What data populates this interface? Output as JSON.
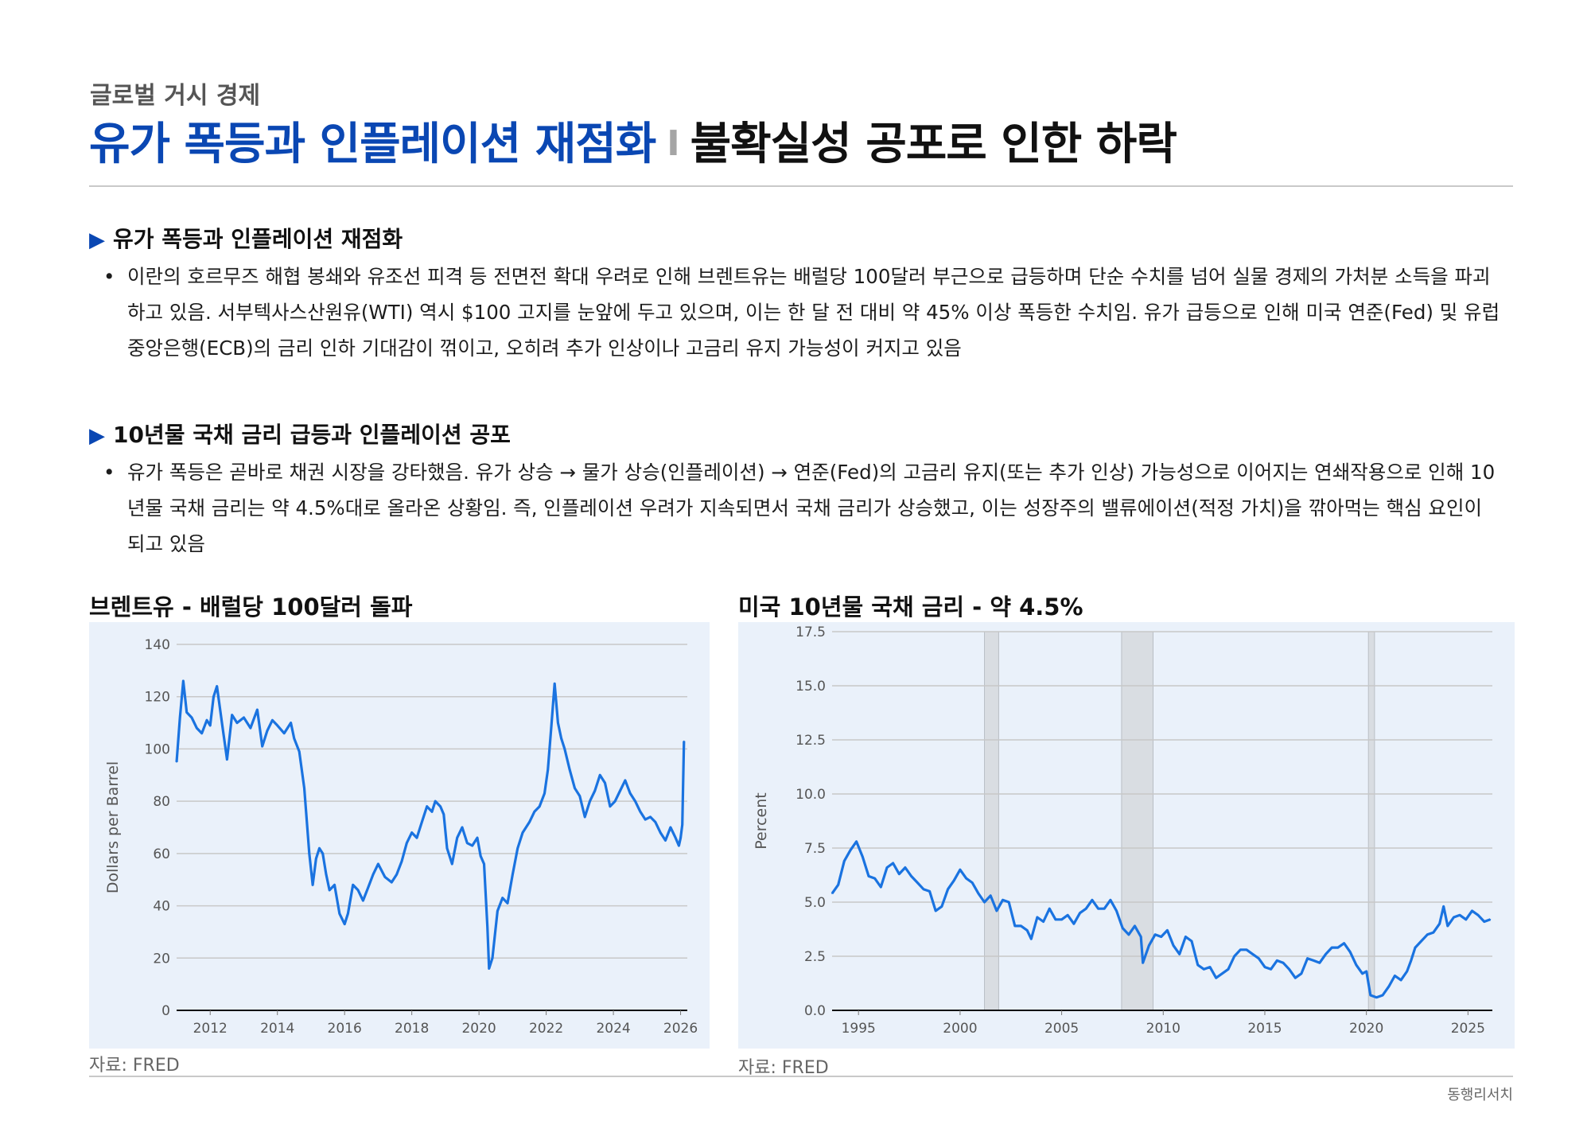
{
  "header": {
    "category": "글로벌 거시 경제",
    "title_blue": "유가 폭등과 인플레이션 재점화",
    "title_sep": "I",
    "title_dark": "불확실성 공포로 인한 하락"
  },
  "section1": {
    "heading": "유가 폭등과 인플레이션 재점화",
    "text": "이란의 호르무즈 해협 봉쇄와 유조선 피격 등 전면전 확대 우려로 인해 브렌트유는 배럴당 100달러 부근으로 급등하며 단순 수치를 넘어 실물 경제의 가처분 소득을 파괴하고 있음. 서부텍사스산원유(WTI) 역시 $100 고지를 눈앞에 두고 있으며, 이는 한 달 전 대비 약 45% 이상 폭등한 수치임. 유가 급등으로 인해 미국 연준(Fed) 및 유럽중앙은행(ECB)의 금리 인하 기대감이 꺾이고, 오히려 추가 인상이나 고금리 유지 가능성이 커지고 있음"
  },
  "section2": {
    "heading": "10년물 국채 금리 급등과 인플레이션 공포",
    "text": "유가 폭등은 곧바로 채권 시장을 강타했음. 유가 상승 → 물가 상승(인플레이션) → 연준(Fed)의 고금리 유지(또는 추가 인상) 가능성으로 이어지는 연쇄작용으로 인해 10년물 국채 금리는 약 4.5%대로 올라온 상황임. 즉, 인플레이션 우려가 지속되면서 국채 금리가 상승했고, 이는 성장주의 밸류에이션(적정 가치)을 깎아먹는 핵심 요인이 되고 있음"
  },
  "icons": {
    "section_marker": "triangle-right-icon"
  },
  "colors": {
    "accent": "#0a47b3",
    "line": "#1a73e0",
    "chart_bg": "#eaf1fa",
    "recession": "#d9dde2"
  },
  "chart_data": [
    {
      "type": "line",
      "title": "브렌트유 - 배럴당 100달러 돌파",
      "ylabel": "Dollars per Barrel",
      "xlabel": "",
      "ylim": [
        0,
        140
      ],
      "xlim": [
        2011,
        2026.2
      ],
      "yticks": [
        "0",
        "20",
        "40",
        "60",
        "80",
        "100",
        "120",
        "140"
      ],
      "xticks": [
        "2012",
        "2014",
        "2016",
        "2018",
        "2020",
        "2022",
        "2024",
        "2026"
      ],
      "grid": true,
      "source": "자료: FRED",
      "series": [
        {
          "x": [
            2011.0,
            2011.1,
            2011.2,
            2011.3,
            2011.45,
            2011.6,
            2011.75,
            2011.9,
            2012.0,
            2012.1,
            2012.2,
            2012.35,
            2012.5,
            2012.65,
            2012.8,
            2013.0,
            2013.2,
            2013.4,
            2013.55,
            2013.7,
            2013.85,
            2014.0,
            2014.2,
            2014.4,
            2014.5,
            2014.65,
            2014.8,
            2014.95,
            2015.05,
            2015.15,
            2015.25,
            2015.35,
            2015.45,
            2015.55,
            2015.7,
            2015.85,
            2016.0,
            2016.1,
            2016.25,
            2016.4,
            2016.55,
            2016.7,
            2016.85,
            2017.0,
            2017.2,
            2017.4,
            2017.55,
            2017.7,
            2017.85,
            2018.0,
            2018.15,
            2018.3,
            2018.45,
            2018.6,
            2018.7,
            2018.85,
            2018.95,
            2019.05,
            2019.2,
            2019.35,
            2019.5,
            2019.65,
            2019.8,
            2019.95,
            2020.05,
            2020.15,
            2020.25,
            2020.3,
            2020.4,
            2020.55,
            2020.7,
            2020.85,
            2021.0,
            2021.15,
            2021.3,
            2021.5,
            2021.65,
            2021.8,
            2021.95,
            2022.05,
            2022.15,
            2022.25,
            2022.35,
            2022.45,
            2022.55,
            2022.7,
            2022.85,
            2023.0,
            2023.15,
            2023.3,
            2023.45,
            2023.6,
            2023.75,
            2023.9,
            2024.05,
            2024.2,
            2024.35,
            2024.5,
            2024.65,
            2024.8,
            2024.95,
            2025.1,
            2025.25,
            2025.4,
            2025.55,
            2025.7,
            2025.85,
            2025.95,
            2026.0,
            2026.05,
            2026.1
          ],
          "y": [
            95,
            112,
            126,
            114,
            112,
            108,
            106,
            111,
            109,
            120,
            124,
            110,
            96,
            113,
            110,
            112,
            108,
            115,
            101,
            107,
            111,
            109,
            106,
            110,
            104,
            99,
            85,
            60,
            48,
            58,
            62,
            60,
            52,
            46,
            48,
            37,
            33,
            37,
            48,
            46,
            42,
            47,
            52,
            56,
            51,
            49,
            52,
            57,
            64,
            68,
            66,
            72,
            78,
            76,
            80,
            78,
            75,
            62,
            56,
            66,
            70,
            64,
            63,
            66,
            59,
            56,
            32,
            16,
            20,
            38,
            43,
            41,
            52,
            62,
            68,
            72,
            76,
            78,
            83,
            92,
            108,
            125,
            110,
            104,
            100,
            92,
            85,
            82,
            74,
            80,
            84,
            90,
            87,
            78,
            80,
            84,
            88,
            83,
            80,
            76,
            73,
            74,
            72,
            68,
            65,
            70,
            66,
            63,
            66,
            71,
            103
          ],
          "name": ""
        }
      ]
    },
    {
      "type": "line",
      "title": "미국 10년물 국채 금리 - 약 4.5%",
      "ylabel": "Percent",
      "xlabel": "",
      "ylim": [
        0,
        17.5
      ],
      "xlim": [
        1993.7,
        2026.2
      ],
      "yticks": [
        "0.0",
        "2.5",
        "5.0",
        "7.5",
        "10.0",
        "12.5",
        "15.0",
        "17.5"
      ],
      "xticks": [
        "1995",
        "2000",
        "2005",
        "2010",
        "2015",
        "2020",
        "2025"
      ],
      "recessions": [
        [
          2001.2,
          2001.9
        ],
        [
          2007.95,
          2009.5
        ],
        [
          2020.1,
          2020.4
        ]
      ],
      "grid": true,
      "source": "자료: FRED",
      "series": [
        {
          "x": [
            1993.7,
            1994.0,
            1994.3,
            1994.6,
            1994.9,
            1995.2,
            1995.5,
            1995.8,
            1996.1,
            1996.4,
            1996.7,
            1997.0,
            1997.3,
            1997.6,
            1997.9,
            1998.2,
            1998.5,
            1998.8,
            1999.1,
            1999.4,
            1999.7,
            2000.0,
            2000.3,
            2000.6,
            2000.9,
            2001.2,
            2001.5,
            2001.8,
            2002.1,
            2002.4,
            2002.7,
            2003.0,
            2003.3,
            2003.5,
            2003.8,
            2004.1,
            2004.4,
            2004.7,
            2005.0,
            2005.3,
            2005.6,
            2005.9,
            2006.2,
            2006.5,
            2006.8,
            2007.1,
            2007.4,
            2007.7,
            2008.0,
            2008.3,
            2008.6,
            2008.9,
            2009.0,
            2009.3,
            2009.6,
            2009.9,
            2010.2,
            2010.5,
            2010.8,
            2011.1,
            2011.4,
            2011.7,
            2012.0,
            2012.3,
            2012.6,
            2012.9,
            2013.2,
            2013.5,
            2013.8,
            2014.1,
            2014.4,
            2014.7,
            2015.0,
            2015.3,
            2015.6,
            2015.9,
            2016.2,
            2016.5,
            2016.8,
            2017.1,
            2017.4,
            2017.7,
            2018.0,
            2018.3,
            2018.6,
            2018.9,
            2019.2,
            2019.5,
            2019.8,
            2020.0,
            2020.2,
            2020.5,
            2020.8,
            2021.1,
            2021.4,
            2021.7,
            2022.0,
            2022.2,
            2022.4,
            2022.7,
            2023.0,
            2023.3,
            2023.6,
            2023.8,
            2024.0,
            2024.3,
            2024.6,
            2024.9,
            2025.2,
            2025.5,
            2025.8,
            2026.1
          ],
          "y": [
            5.4,
            5.8,
            6.9,
            7.4,
            7.8,
            7.1,
            6.2,
            6.1,
            5.7,
            6.6,
            6.8,
            6.3,
            6.6,
            6.2,
            5.9,
            5.6,
            5.5,
            4.6,
            4.8,
            5.6,
            6.0,
            6.5,
            6.1,
            5.9,
            5.4,
            5.0,
            5.3,
            4.6,
            5.1,
            5.0,
            3.9,
            3.9,
            3.7,
            3.3,
            4.3,
            4.1,
            4.7,
            4.2,
            4.2,
            4.4,
            4.0,
            4.5,
            4.7,
            5.1,
            4.7,
            4.7,
            5.1,
            4.6,
            3.8,
            3.5,
            3.9,
            3.4,
            2.2,
            3.0,
            3.5,
            3.4,
            3.7,
            3.0,
            2.6,
            3.4,
            3.2,
            2.1,
            1.9,
            2.0,
            1.5,
            1.7,
            1.9,
            2.5,
            2.8,
            2.8,
            2.6,
            2.4,
            2.0,
            1.9,
            2.3,
            2.2,
            1.9,
            1.5,
            1.7,
            2.4,
            2.3,
            2.2,
            2.6,
            2.9,
            2.9,
            3.1,
            2.7,
            2.1,
            1.7,
            1.8,
            0.7,
            0.6,
            0.7,
            1.1,
            1.6,
            1.4,
            1.8,
            2.3,
            2.9,
            3.2,
            3.5,
            3.6,
            4.0,
            4.8,
            3.9,
            4.3,
            4.4,
            4.2,
            4.6,
            4.4,
            4.1,
            4.2
          ]
        }
      ]
    }
  ],
  "footer": {
    "brand": "동행리서치"
  }
}
